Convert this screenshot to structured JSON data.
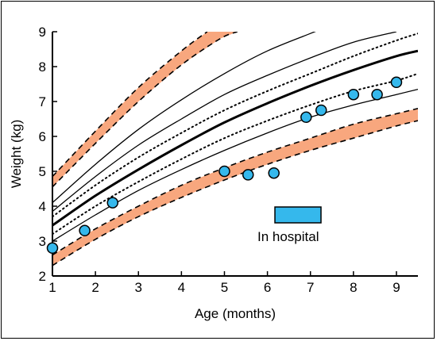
{
  "chart_data": {
    "type": "line",
    "xlabel": "Age (months)",
    "ylabel": "Weight (kg)",
    "xlim": [
      1,
      9.5
    ],
    "ylim": [
      2,
      9
    ],
    "x_ticks": [
      "1",
      "2",
      "3",
      "4",
      "5",
      "6",
      "7",
      "8",
      "9"
    ],
    "y_ticks": [
      "2",
      "3",
      "4",
      "5",
      "6",
      "7",
      "8",
      "9"
    ],
    "grid": false,
    "colors": {
      "band": "#f8a77e",
      "point": "#35b8ec",
      "line": "#000000"
    },
    "bands": [
      {
        "lower": [
          [
            1,
            4.55
          ],
          [
            2,
            5.8
          ],
          [
            3,
            7.0
          ],
          [
            4,
            8.05
          ],
          [
            4.9,
            8.8
          ],
          [
            5.3,
            9.0
          ]
        ],
        "upper": [
          [
            1,
            4.85
          ],
          [
            2,
            6.15
          ],
          [
            3,
            7.4
          ],
          [
            4,
            8.45
          ],
          [
            4.6,
            9.0
          ]
        ]
      },
      {
        "lower": [
          [
            1,
            2.3
          ],
          [
            2,
            3.05
          ],
          [
            3,
            3.7
          ],
          [
            4,
            4.25
          ],
          [
            5,
            4.75
          ],
          [
            6,
            5.2
          ],
          [
            7,
            5.6
          ],
          [
            8,
            5.95
          ],
          [
            9,
            6.3
          ],
          [
            9.5,
            6.45
          ]
        ],
        "upper": [
          [
            1,
            2.6
          ],
          [
            2,
            3.35
          ],
          [
            3,
            4.0
          ],
          [
            4,
            4.6
          ],
          [
            5,
            5.1
          ],
          [
            6,
            5.55
          ],
          [
            7,
            5.95
          ],
          [
            8,
            6.35
          ],
          [
            9,
            6.65
          ],
          [
            9.5,
            6.8
          ]
        ]
      }
    ],
    "curves": [
      {
        "style": "thin",
        "points": [
          [
            1,
            4.1
          ],
          [
            2,
            5.2
          ],
          [
            3,
            6.2
          ],
          [
            4,
            7.05
          ],
          [
            5,
            7.8
          ],
          [
            6,
            8.45
          ],
          [
            7,
            8.95
          ],
          [
            7.2,
            9.05
          ]
        ]
      },
      {
        "style": "thin",
        "points": [
          [
            1,
            3.85
          ],
          [
            2,
            4.85
          ],
          [
            3,
            5.75
          ],
          [
            4,
            6.5
          ],
          [
            5,
            7.2
          ],
          [
            6,
            7.75
          ],
          [
            7,
            8.25
          ],
          [
            8,
            8.7
          ],
          [
            9,
            9.0
          ]
        ]
      },
      {
        "style": "dotted",
        "points": [
          [
            1,
            3.7
          ],
          [
            2,
            4.6
          ],
          [
            3,
            5.4
          ],
          [
            4,
            6.1
          ],
          [
            5,
            6.75
          ],
          [
            6,
            7.3
          ],
          [
            7,
            7.8
          ],
          [
            8,
            8.3
          ],
          [
            9,
            8.75
          ],
          [
            9.5,
            8.95
          ]
        ]
      },
      {
        "style": "thick",
        "points": [
          [
            1,
            3.45
          ],
          [
            2,
            4.3
          ],
          [
            3,
            5.05
          ],
          [
            4,
            5.75
          ],
          [
            5,
            6.4
          ],
          [
            6,
            6.95
          ],
          [
            7,
            7.45
          ],
          [
            8,
            7.9
          ],
          [
            9,
            8.3
          ],
          [
            9.5,
            8.45
          ]
        ]
      },
      {
        "style": "dotted",
        "points": [
          [
            1,
            3.2
          ],
          [
            2,
            4.0
          ],
          [
            3,
            4.7
          ],
          [
            4,
            5.35
          ],
          [
            5,
            5.95
          ],
          [
            6,
            6.45
          ],
          [
            7,
            6.9
          ],
          [
            8,
            7.3
          ],
          [
            9,
            7.6
          ],
          [
            9.5,
            7.8
          ]
        ]
      },
      {
        "style": "thin",
        "points": [
          [
            1,
            3.0
          ],
          [
            2,
            3.75
          ],
          [
            3,
            4.45
          ],
          [
            4,
            5.05
          ],
          [
            5,
            5.6
          ],
          [
            6,
            6.1
          ],
          [
            7,
            6.55
          ],
          [
            8,
            6.9
          ],
          [
            9,
            7.2
          ],
          [
            9.5,
            7.35
          ]
        ]
      }
    ],
    "points": [
      {
        "x": 1.0,
        "y": 2.8
      },
      {
        "x": 1.75,
        "y": 3.3
      },
      {
        "x": 2.4,
        "y": 4.1
      },
      {
        "x": 5.0,
        "y": 5.0
      },
      {
        "x": 5.55,
        "y": 4.9
      },
      {
        "x": 6.15,
        "y": 4.95
      },
      {
        "x": 6.9,
        "y": 6.55
      },
      {
        "x": 7.25,
        "y": 6.75
      },
      {
        "x": 8.0,
        "y": 7.2
      },
      {
        "x": 8.55,
        "y": 7.2
      },
      {
        "x": 9.0,
        "y": 7.55
      }
    ],
    "legend": {
      "label": "In hospital",
      "placement": "inside-lower-right"
    }
  }
}
